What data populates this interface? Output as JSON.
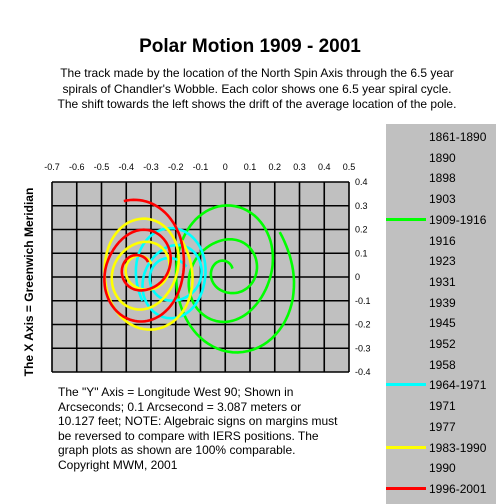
{
  "title": "Polar Motion 1909 - 2001",
  "subtitle": "The track made by the location of the North Spin Axis through the 6.5 year spirals of Chandler's Wobble.  Each color shows one 6.5 year spiral cycle. The shift towards the left shows the drift of the average location of the pole.",
  "note": "The \"Y\" Axis = Longitude West 90; Shown in Arcseconds;  0.1 Arcsecond = 3.087 meters or 10.127 feet; NOTE:  Algebraic signs on margins must be reversed to compare with IERS positions.  The graph plots as shown are 100% comparable.  Copyright MWM, 2001",
  "legend": [
    {
      "label": "1861-1890",
      "color": ""
    },
    {
      "label": "1890",
      "color": ""
    },
    {
      "label": "1898",
      "color": ""
    },
    {
      "label": "1903",
      "color": ""
    },
    {
      "label": "1909-1916",
      "color": "#00ff00"
    },
    {
      "label": "1916",
      "color": ""
    },
    {
      "label": "1923",
      "color": ""
    },
    {
      "label": "1931",
      "color": ""
    },
    {
      "label": "1939",
      "color": ""
    },
    {
      "label": "1945",
      "color": ""
    },
    {
      "label": "1952",
      "color": ""
    },
    {
      "label": "1958",
      "color": ""
    },
    {
      "label": "1964-1971",
      "color": "#00ffff"
    },
    {
      "label": "1971",
      "color": ""
    },
    {
      "label": "1977",
      "color": ""
    },
    {
      "label": "1983-1990",
      "color": "#ffff00"
    },
    {
      "label": "1990",
      "color": ""
    },
    {
      "label": "1996-2001",
      "color": "#ff0000"
    }
  ],
  "chart_data": {
    "type": "line",
    "title": "Polar Motion 1909 - 2001",
    "ylabel": "The X Axis = Greenwich Meridian",
    "xlabel": "",
    "xlim": [
      -0.7,
      0.5
    ],
    "ylim": [
      -0.4,
      0.4
    ],
    "xticks": [
      "-0.7",
      "-0.6",
      "-0.5",
      "-0.4",
      "-0.3",
      "-0.2",
      "-0.1",
      "0",
      "0.1",
      "0.2",
      "0.3",
      "0.4",
      "0.5"
    ],
    "yticks": [
      "0.4",
      "0.3",
      "0.2",
      "0.1",
      "0",
      "-0.1",
      "-0.2",
      "-0.3",
      "-0.4"
    ],
    "grid": true,
    "plot_background": "#c0c0c0",
    "series": [
      {
        "name": "1909-1916",
        "color": "#00ff00",
        "center": [
          0.01,
          0.02
        ],
        "r_start": 0.03,
        "r_end": 0.34,
        "turns": 3.0
      },
      {
        "name": "1964-1971",
        "color": "#00ffff",
        "center": [
          -0.21,
          0.0
        ],
        "r_start": 0.08,
        "r_end": 0.2,
        "turns": 2.5
      },
      {
        "name": "1983-1990",
        "color": "#ffff00",
        "center": [
          -0.33,
          0.03
        ],
        "r_start": 0.05,
        "r_end": 0.25,
        "turns": 3.0
      },
      {
        "name": "1996-2001",
        "color": "#ff0000",
        "center": [
          -0.34,
          0.04
        ],
        "r_start": 0.04,
        "r_end": 0.26,
        "turns": 2.2
      }
    ]
  }
}
